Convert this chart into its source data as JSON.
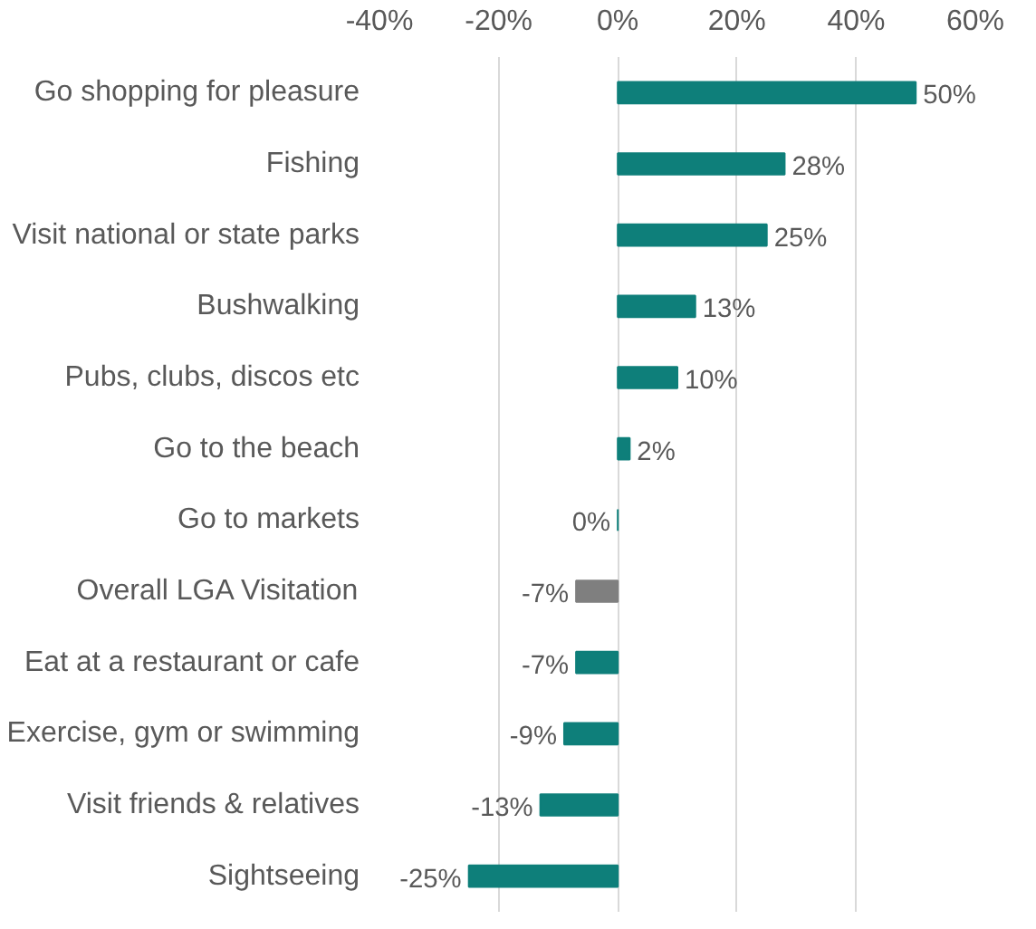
{
  "chart_data": {
    "type": "bar",
    "orientation": "horizontal",
    "categories": [
      "Go shopping for pleasure",
      "Fishing",
      "Visit national or state parks",
      "Bushwalking",
      "Pubs, clubs, discos etc",
      "Go to the beach",
      "Go to markets",
      "Overall LGA Visitation",
      "Eat at a restaurant or cafe",
      "Exercise, gym or swimming",
      "Visit friends & relatives",
      "Sightseeing"
    ],
    "values": [
      50,
      28,
      25,
      13,
      10,
      2,
      0,
      -7,
      -7,
      -9,
      -13,
      -25
    ],
    "colors": [
      "#0e7f7a",
      "#0e7f7a",
      "#0e7f7a",
      "#0e7f7a",
      "#0e7f7a",
      "#0e7f7a",
      "#0e7f7a",
      "#7f7f7f",
      "#0e7f7a",
      "#0e7f7a",
      "#0e7f7a",
      "#0e7f7a"
    ],
    "value_labels": [
      "50%",
      "28%",
      "25%",
      "13%",
      "10%",
      "2%",
      "0%",
      "-7%",
      "-7%",
      "-9%",
      "-13%",
      "-25%"
    ],
    "xlim": [
      -40,
      60
    ],
    "xticks": [
      {
        "value": -40,
        "label": "-40%"
      },
      {
        "value": -20,
        "label": "-20%"
      },
      {
        "value": 0,
        "label": "0%"
      },
      {
        "value": 20,
        "label": "20%"
      },
      {
        "value": 40,
        "label": "40%"
      },
      {
        "value": 60,
        "label": "60%"
      }
    ],
    "grid": "x"
  }
}
